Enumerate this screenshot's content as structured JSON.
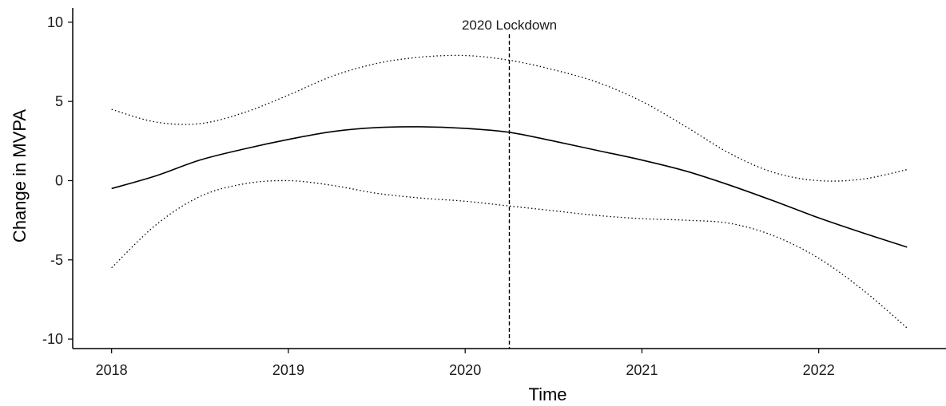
{
  "chart_data": {
    "type": "line",
    "title": "",
    "xlabel": "Time",
    "ylabel": "Change in MVPA",
    "xlim": [
      2017.78,
      2022.72
    ],
    "ylim": [
      -10.6,
      10.9
    ],
    "x_ticks": [
      2018,
      2019,
      2020,
      2021,
      2022
    ],
    "x_tick_labels": [
      "2018",
      "2019",
      "2020",
      "2021",
      "2022"
    ],
    "y_ticks": [
      10,
      5,
      0,
      -5,
      -10
    ],
    "y_tick_labels": [
      "10",
      "5",
      "0",
      "-5",
      "-10"
    ],
    "grid": false,
    "legend": "none",
    "series": [
      {
        "role": "estimate",
        "style": "solid",
        "color": "#000000",
        "x": [
          2018.0,
          2018.25,
          2018.5,
          2018.75,
          2019.0,
          2019.25,
          2019.5,
          2019.75,
          2020.0,
          2020.25,
          2020.5,
          2020.75,
          2021.0,
          2021.25,
          2021.5,
          2021.75,
          2022.0,
          2022.25,
          2022.5
        ],
        "y": [
          -0.5,
          0.3,
          1.3,
          2.0,
          2.6,
          3.1,
          3.35,
          3.4,
          3.3,
          3.05,
          2.5,
          1.9,
          1.3,
          0.6,
          -0.3,
          -1.3,
          -2.35,
          -3.3,
          -4.2
        ]
      },
      {
        "role": "upper-bound",
        "style": "dotted",
        "color": "#000000",
        "x": [
          2018.0,
          2018.25,
          2018.5,
          2018.75,
          2019.0,
          2019.25,
          2019.5,
          2019.75,
          2020.0,
          2020.25,
          2020.5,
          2020.75,
          2021.0,
          2021.25,
          2021.5,
          2021.75,
          2022.0,
          2022.25,
          2022.5
        ],
        "y": [
          4.5,
          3.7,
          3.6,
          4.3,
          5.4,
          6.6,
          7.4,
          7.8,
          7.9,
          7.6,
          7.0,
          6.2,
          5.0,
          3.4,
          1.7,
          0.5,
          0.0,
          0.1,
          0.7
        ]
      },
      {
        "role": "lower-bound",
        "style": "dotted",
        "color": "#000000",
        "x": [
          2018.0,
          2018.25,
          2018.5,
          2018.75,
          2019.0,
          2019.25,
          2019.5,
          2019.75,
          2020.0,
          2020.25,
          2020.5,
          2020.75,
          2021.0,
          2021.25,
          2021.5,
          2021.75,
          2022.0,
          2022.25,
          2022.5
        ],
        "y": [
          -5.5,
          -2.8,
          -1.0,
          -0.2,
          0.0,
          -0.3,
          -0.8,
          -1.1,
          -1.3,
          -1.6,
          -1.9,
          -2.2,
          -2.4,
          -2.5,
          -2.7,
          -3.5,
          -4.9,
          -6.9,
          -9.3
        ]
      }
    ],
    "annotations": [
      {
        "type": "vline",
        "x": 2020.25,
        "style": "dashed",
        "label": "2020 Lockdown"
      }
    ]
  }
}
